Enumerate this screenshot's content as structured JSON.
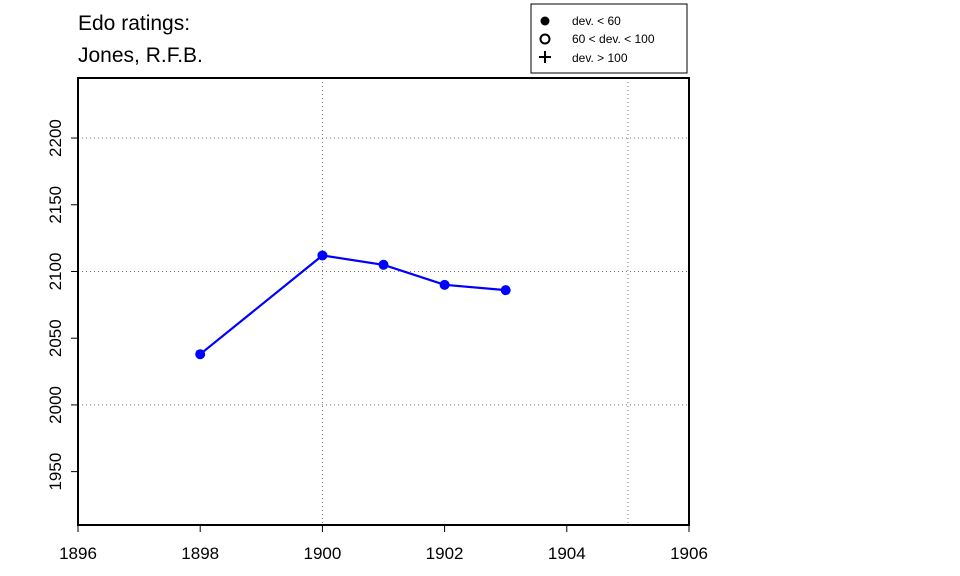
{
  "chart_data": {
    "type": "line",
    "title_lines": [
      "Edo ratings:",
      "Jones, R.F.B."
    ],
    "xlabel": "",
    "ylabel": "",
    "xlim": [
      1896,
      1906
    ],
    "ylim": [
      1910,
      2245
    ],
    "x_ticks": [
      1896,
      1898,
      1900,
      1902,
      1904,
      1906
    ],
    "y_ticks": [
      1950,
      2000,
      2050,
      2100,
      2150,
      2200
    ],
    "grid_x": [
      1900,
      1905
    ],
    "grid_y": [
      2000,
      2100,
      2200
    ],
    "series": [
      {
        "color": "#0000ff",
        "marker": "filled-circle",
        "points": [
          {
            "x": 1898,
            "y": 2038
          },
          {
            "x": 1900,
            "y": 2112
          },
          {
            "x": 1901,
            "y": 2105
          },
          {
            "x": 1902,
            "y": 2090
          },
          {
            "x": 1903,
            "y": 2086
          }
        ]
      }
    ],
    "legend": {
      "placement": "top-right",
      "entries": [
        {
          "symbol": "filled-circle",
          "label": "dev. < 60"
        },
        {
          "symbol": "open-circle",
          "label": "60 < dev. < 100"
        },
        {
          "symbol": "plus",
          "label": "dev. > 100"
        }
      ]
    }
  }
}
